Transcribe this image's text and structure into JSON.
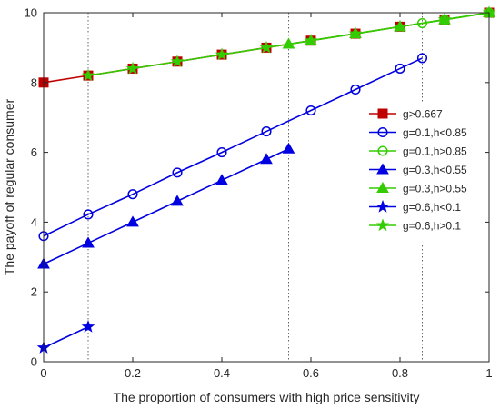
{
  "chart_data": {
    "type": "line",
    "xlabel": "The proportion of consumers with high price sensitivity",
    "ylabel": "The payoff of regular consumer",
    "xlim": [
      0,
      1
    ],
    "ylim": [
      0,
      10
    ],
    "xticks": [
      "0",
      "0.2",
      "0.4",
      "0.6",
      "0.8",
      "1"
    ],
    "yticks": [
      "0",
      "2",
      "4",
      "6",
      "8",
      "10"
    ],
    "grid": false,
    "legend_position": "right",
    "reference_lines_x": [
      0.1,
      0.55,
      0.85
    ],
    "series": [
      {
        "name": "g>0.667",
        "color": "#c00000",
        "marker": "square-filled",
        "x": [
          0,
          0.1,
          0.2,
          0.3,
          0.4,
          0.5,
          0.6,
          0.7,
          0.8,
          0.9,
          1
        ],
        "y": [
          8.0,
          8.2,
          8.4,
          8.6,
          8.8,
          9.0,
          9.2,
          9.4,
          9.6,
          9.8,
          10.0
        ]
      },
      {
        "name": "g=0.1,h<0.85",
        "color": "#0000e0",
        "marker": "circle-open",
        "x": [
          0,
          0.1,
          0.2,
          0.3,
          0.4,
          0.5,
          0.6,
          0.7,
          0.8,
          0.85
        ],
        "y": [
          3.6,
          4.22,
          4.8,
          5.42,
          6.0,
          6.6,
          7.2,
          7.8,
          8.4,
          8.7
        ]
      },
      {
        "name": "g=0.1,h>0.85",
        "color": "#33cc00",
        "marker": "circle-open",
        "x": [
          0.85,
          0.9,
          1
        ],
        "y": [
          9.7,
          9.8,
          10.0
        ]
      },
      {
        "name": "g=0.3,h<0.55",
        "color": "#0000e0",
        "marker": "triangle-filled",
        "x": [
          0,
          0.1,
          0.2,
          0.3,
          0.4,
          0.5,
          0.55
        ],
        "y": [
          2.8,
          3.4,
          4.0,
          4.6,
          5.2,
          5.8,
          6.1
        ]
      },
      {
        "name": "g=0.3,h>0.55",
        "color": "#33cc00",
        "marker": "triangle-filled",
        "x": [
          0.55,
          0.6,
          0.7,
          0.8,
          0.9,
          1
        ],
        "y": [
          9.1,
          9.2,
          9.4,
          9.6,
          9.8,
          10.0
        ]
      },
      {
        "name": "g=0.6,h<0.1",
        "color": "#0000e0",
        "marker": "star-filled",
        "x": [
          0,
          0.1
        ],
        "y": [
          0.4,
          1.0
        ]
      },
      {
        "name": "g=0.6,h>0.1",
        "color": "#33cc00",
        "marker": "star-filled",
        "x": [
          0.1,
          0.2,
          0.3,
          0.4,
          0.5,
          0.6,
          0.7,
          0.8,
          0.9,
          1
        ],
        "y": [
          8.2,
          8.4,
          8.6,
          8.8,
          9.0,
          9.2,
          9.4,
          9.6,
          9.8,
          10.0
        ]
      }
    ]
  }
}
